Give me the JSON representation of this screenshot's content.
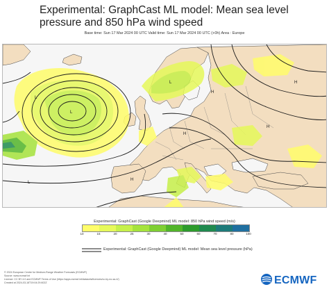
{
  "title": "Experimental: GraphCast ML model: Mean sea level pressure and 850 hPa wind speed",
  "subtitle": "Base time: Sun 17 Mar 2024 00 UTC Valid time: Sun 17 Mar 2024 00 UTC (+0h) Area : Europe",
  "map": {
    "high_label": "H",
    "low_label": "L",
    "land_color": "#f3dec0",
    "sea_color": "#f6f6f6",
    "isobar_color": "#1a1a1a"
  },
  "legend": {
    "title": "Experimental: GraphCast (Google Deepmind) ML model: 850 hPa wind speed (m/s)",
    "ticks": [
      "10",
      "15",
      "20",
      "25",
      "30",
      "40",
      "50",
      "60",
      "70",
      "80",
      "100"
    ],
    "colors": [
      "#fffd6a",
      "#e6f95a",
      "#c6f04a",
      "#a5e33c",
      "#7fcf33",
      "#52b52a",
      "#2d9b2c",
      "#1f8a4f",
      "#1d7b7a",
      "#1f6fa0"
    ],
    "line_label": "Experimental: GraphCast (Google Deepmind) ML model: Mean sea level pressure (hPa)"
  },
  "credits": [
    "© 2024 European Centre for Medium-Range Weather Forecasts (ECMWF)",
    "Source: www.ecmwf.int",
    "Licence: CC BY 4.0 and ECMWF Terms of Use (https://apps.ecmwf.int/datasets/licences/cc-by-no-sa-4/)",
    "Created at 2024-03-18T19:04:29.602Z"
  ],
  "logo_text": "ECMWF"
}
